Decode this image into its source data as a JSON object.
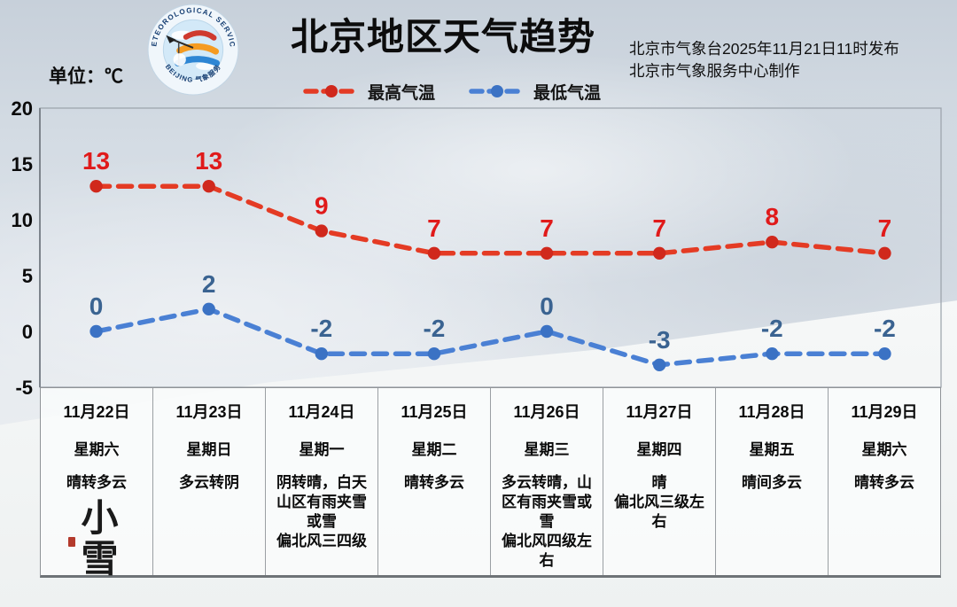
{
  "header": {
    "title": "北京地区天气趋势",
    "unit_label": "单位：℃",
    "publisher_line1": "北京市气象台2025年11月21日11时发布",
    "publisher_line2": "北京市气象服务中心制作",
    "logo": {
      "top_text": "METEOROLOGICAL SERVICE",
      "bottom_text": "BEIJING 气象服务"
    }
  },
  "chart_data": {
    "type": "line",
    "title": "北京地区天气趋势",
    "x": [
      "11月22日",
      "11月23日",
      "11月24日",
      "11月25日",
      "11月26日",
      "11月27日",
      "11月28日",
      "11月29日"
    ],
    "series": [
      {
        "name": "最高气温",
        "values": [
          13,
          13,
          9,
          7,
          7,
          7,
          8,
          7
        ],
        "color": "#e43b24",
        "marker_color": "#d0281c",
        "label_color": "#e01a1a"
      },
      {
        "name": "最低气温",
        "values": [
          0,
          2,
          -2,
          -2,
          0,
          -3,
          -2,
          -2
        ],
        "color": "#4a80d4",
        "marker_color": "#3b72c4",
        "label_color": "#3a6391"
      }
    ],
    "ylabel": "单位：℃",
    "ylim": [
      -5,
      20
    ],
    "yticks": [
      20,
      15,
      10,
      5,
      0,
      -5
    ],
    "grid": false,
    "line_style": "dashed",
    "legend_position": "top"
  },
  "table": {
    "days": [
      {
        "date": "11月22日",
        "weekday": "星期六",
        "weather": "晴转多云",
        "calligraphy": "小雪"
      },
      {
        "date": "11月23日",
        "weekday": "星期日",
        "weather": "多云转阴"
      },
      {
        "date": "11月24日",
        "weekday": "星期一",
        "weather": "阴转晴，白天山区有雨夹雪或雪\n偏北风三四级"
      },
      {
        "date": "11月25日",
        "weekday": "星期二",
        "weather": "晴转多云"
      },
      {
        "date": "11月26日",
        "weekday": "星期三",
        "weather": "多云转晴，山区有雨夹雪或雪\n偏北风四级左右"
      },
      {
        "date": "11月27日",
        "weekday": "星期四",
        "weather": "晴\n偏北风三级左右"
      },
      {
        "date": "11月28日",
        "weekday": "星期五",
        "weather": "晴间多云"
      },
      {
        "date": "11月29日",
        "weekday": "星期六",
        "weather": "晴转多云"
      }
    ]
  }
}
